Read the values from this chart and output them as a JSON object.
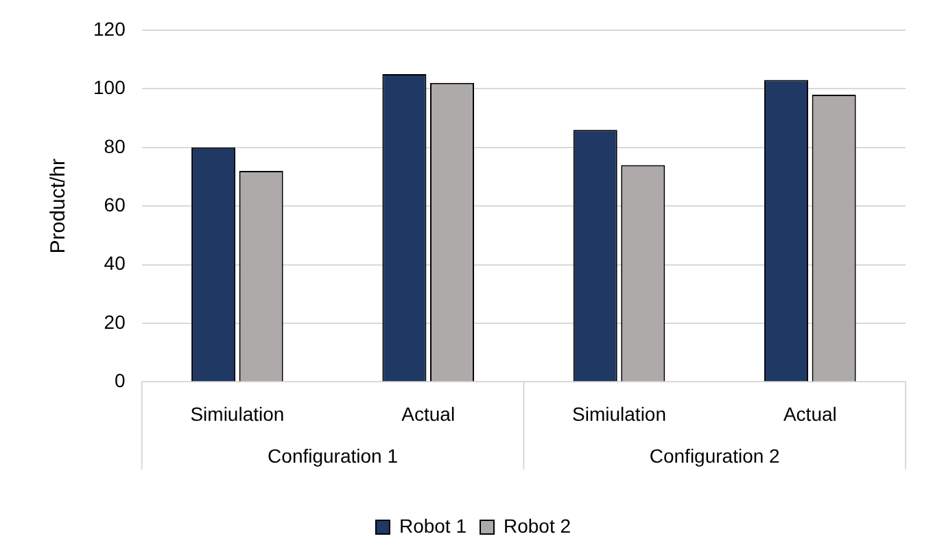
{
  "chart_data": {
    "type": "bar",
    "ylabel": "Product/hr",
    "categories": [
      "Simiulation",
      "Actual",
      "Simiulation",
      "Actual"
    ],
    "series": [
      {
        "name": "Robot 1",
        "color": "#203864",
        "values": [
          80,
          105,
          86,
          103
        ]
      },
      {
        "name": "Robot 2",
        "color": "#aeaaaa",
        "values": [
          72,
          102,
          74,
          98
        ]
      }
    ],
    "annotations": [
      "Configuration 1",
      "Configuration 2"
    ],
    "ylim": [
      0,
      120
    ],
    "yticks": [
      0,
      20,
      40,
      60,
      80,
      100,
      120
    ],
    "grid": "y",
    "legend": "bottom"
  }
}
